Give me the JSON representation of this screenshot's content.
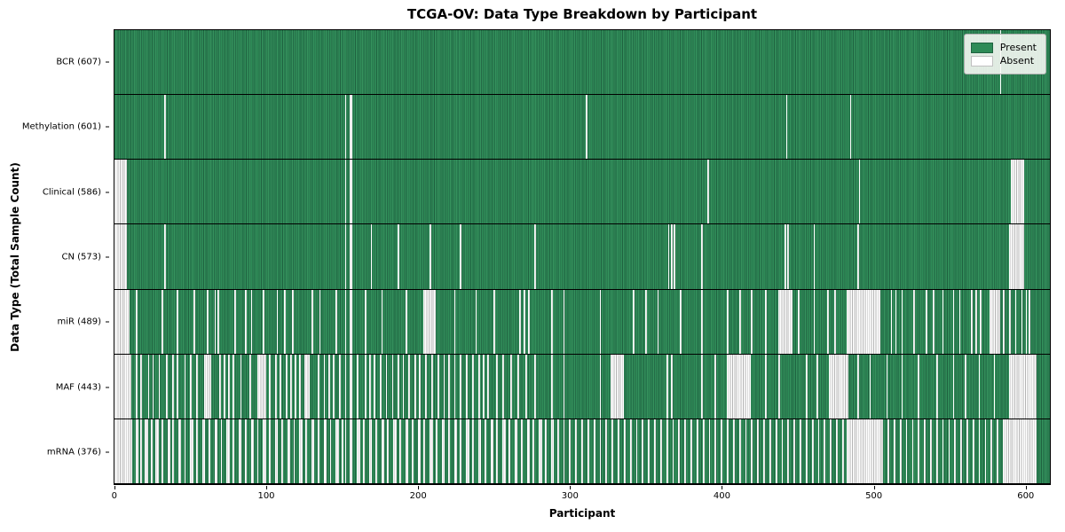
{
  "figure": {
    "title": "TCGA-OV: Data Type Breakdown by Participant",
    "xlabel": "Participant",
    "ylabel": "Data Type (Total Sample Count)"
  },
  "legend": {
    "items": [
      {
        "label": "Present",
        "color": "#2e8b57"
      },
      {
        "label": "Absent",
        "color": "#ffffff"
      }
    ]
  },
  "chart_data": {
    "type": "heatmap",
    "title": "TCGA-OV: Data Type Breakdown by Participant",
    "xlabel": "Participant",
    "ylabel": "Data Type (Total Sample Count)",
    "legend_position": "upper right",
    "present_color": "#2e8b57",
    "absent_color": "#ffffff",
    "x_ticks": [
      0,
      100,
      200,
      300,
      400,
      500,
      600
    ],
    "x_axis_max": 617,
    "n_participants": 608,
    "rows": [
      {
        "name": "BCR",
        "count": 607,
        "absent": [
          584
        ]
      },
      {
        "name": "Methylation",
        "count": 601,
        "absent": [
          33,
          152,
          [
            155,
            156
          ],
          311,
          443,
          485
        ]
      },
      {
        "name": "Clinical",
        "count": 586,
        "absent": [
          [
            0,
            7
          ],
          152,
          [
            155,
            156
          ],
          391,
          491,
          [
            591,
            599
          ]
        ]
      },
      {
        "name": "CN",
        "count": 573,
        "absent": [
          [
            0,
            7
          ],
          33,
          152,
          [
            155,
            156
          ],
          169,
          187,
          208,
          228,
          277,
          365,
          367,
          369,
          387,
          442,
          444,
          461,
          490,
          [
            590,
            599
          ]
        ]
      },
      {
        "name": "miR",
        "count": 489,
        "absent": [
          [
            0,
            9
          ],
          14,
          31,
          41,
          52,
          61,
          66,
          68,
          79,
          86,
          90,
          98,
          107,
          112,
          117,
          130,
          135,
          146,
          152,
          [
            155,
            156
          ],
          165,
          176,
          192,
          [
            204,
            211
          ],
          224,
          238,
          250,
          267,
          270,
          273,
          288,
          296,
          320,
          342,
          350,
          358,
          373,
          387,
          404,
          412,
          420,
          429,
          [
            438,
            446
          ],
          451,
          461,
          470,
          475,
          [
            483,
            504
          ],
          512,
          515,
          519,
          527,
          535,
          540,
          546,
          553,
          557,
          565,
          568,
          571,
          [
            577,
            583
          ],
          586,
          590,
          594,
          598,
          601,
          603
        ]
      },
      {
        "name": "MAF",
        "count": 443,
        "absent": [
          [
            0,
            10
          ],
          14,
          17,
          22,
          25,
          29,
          34,
          38,
          41,
          46,
          50,
          54,
          [
            59,
            63
          ],
          69,
          72,
          75,
          78,
          83,
          89,
          [
            94,
            99
          ],
          102,
          106,
          109,
          113,
          116,
          119,
          122,
          [
            125,
            128
          ],
          134,
          138,
          141,
          144,
          148,
          152,
          [
            155,
            156
          ],
          160,
          165,
          168,
          171,
          175,
          179,
          183,
          187,
          190,
          194,
          198,
          201,
          205,
          209,
          213,
          217,
          220,
          224,
          228,
          232,
          236,
          240,
          243,
          246,
          252,
          256,
          261,
          266,
          271,
          277,
          288,
          296,
          320,
          [
            327,
            335
          ],
          364,
          367,
          387,
          396,
          [
            404,
            419
          ],
          429,
          438,
          456,
          463,
          [
            471,
            483
          ],
          490,
          498,
          509,
          519,
          530,
          542,
          553,
          561,
          570,
          580,
          [
            590,
            607
          ]
        ]
      },
      {
        "name": "mRNA",
        "count": 376,
        "absent": [
          [
            0,
            11
          ],
          14,
          15,
          17,
          20,
          21,
          24,
          27,
          28,
          31,
          35,
          36,
          38,
          42,
          43,
          46,
          50,
          51,
          54,
          58,
          59,
          62,
          66,
          67,
          70,
          74,
          75,
          78,
          82,
          83,
          86,
          90,
          91,
          94,
          98,
          99,
          102,
          106,
          107,
          110,
          114,
          115,
          118,
          122,
          123,
          126,
          130,
          131,
          134,
          138,
          139,
          142,
          146,
          147,
          150,
          152,
          [
            155,
            156
          ],
          160,
          161,
          164,
          168,
          169,
          172,
          176,
          177,
          180,
          184,
          185,
          188,
          192,
          193,
          196,
          200,
          201,
          204,
          208,
          209,
          212,
          216,
          217,
          220,
          224,
          225,
          228,
          232,
          233,
          236,
          240,
          241,
          244,
          248,
          249,
          252,
          256,
          257,
          260,
          264,
          265,
          268,
          272,
          273,
          276,
          280,
          281,
          284,
          288,
          289,
          292,
          296,
          300,
          304,
          308,
          312,
          316,
          320,
          324,
          328,
          332,
          336,
          340,
          344,
          348,
          352,
          356,
          360,
          364,
          368,
          372,
          376,
          380,
          384,
          388,
          392,
          396,
          400,
          404,
          408,
          412,
          416,
          420,
          424,
          428,
          432,
          436,
          440,
          444,
          448,
          452,
          456,
          460,
          464,
          468,
          472,
          476,
          480,
          [
            483,
            506
          ],
          510,
          514,
          518,
          522,
          526,
          530,
          534,
          538,
          542,
          546,
          550,
          554,
          558,
          562,
          566,
          570,
          574,
          578,
          582,
          [
            586,
            607
          ]
        ]
      }
    ]
  }
}
